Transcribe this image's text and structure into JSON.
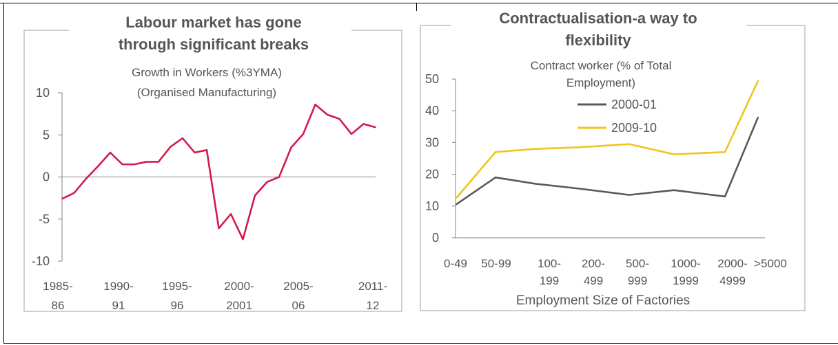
{
  "chart_data": [
    {
      "type": "line",
      "title": [
        "Labour market has gone",
        "through significant breaks"
      ],
      "subtitle": [
        "Growth in Workers (%3YMA)",
        "(Organised Manufacturing)"
      ],
      "x_tick_labels": [
        [
          "1985-",
          "86"
        ],
        [
          "1990-",
          "91"
        ],
        [
          "1995-",
          "96"
        ],
        [
          "2000-",
          "2001"
        ],
        [
          "2005-",
          "06"
        ],
        [
          "2011-",
          "12"
        ]
      ],
      "y_ticks": [
        "10",
        "5",
        "0",
        "-5",
        "-10"
      ],
      "ylim": [
        -10,
        10
      ],
      "grid": false,
      "series": [
        {
          "color": "#d41a4a",
          "x": [
            1985,
            1986,
            1987,
            1988,
            1989,
            1990,
            1991,
            1992,
            1993,
            1994,
            1995,
            1996,
            1997,
            1998,
            1999,
            2000,
            2001,
            2002,
            2003,
            2004,
            2005,
            2006,
            2007,
            2008,
            2009,
            2010,
            2011
          ],
          "values": [
            -2.6,
            -1.9,
            -0.2,
            1.3,
            2.9,
            1.5,
            1.5,
            1.8,
            1.8,
            3.6,
            4.6,
            2.9,
            3.2,
            -6.1,
            -4.4,
            -7.4,
            -2.2,
            -0.6,
            0.0,
            3.5,
            5.1,
            8.6,
            7.4,
            6.9,
            5.1,
            6.3,
            5.9
          ]
        }
      ]
    },
    {
      "type": "line",
      "title": [
        "Contractualisation-a way to",
        "flexibility"
      ],
      "subtitle": [
        "Contract worker (% of Total",
        "Employment)"
      ],
      "xlabel": "Employment Size of Factories",
      "categories": [
        [
          "0-49"
        ],
        [
          "50-99"
        ],
        [
          "100-",
          "199"
        ],
        [
          "200-",
          "499"
        ],
        [
          "500-",
          "999"
        ],
        [
          "1000-",
          "1999"
        ],
        [
          "2000-",
          "4999"
        ],
        [
          ">5000"
        ]
      ],
      "y_ticks": [
        "50",
        "40",
        "30",
        "20",
        "10",
        "0"
      ],
      "ylim": [
        0,
        50
      ],
      "grid": false,
      "legend_placement": "top-center",
      "series": [
        {
          "name": "2000-01",
          "color": "#595959",
          "values": [
            10.5,
            19.0,
            17.0,
            15.5,
            13.5,
            15.0,
            13.0,
            38.0
          ]
        },
        {
          "name": "2009-10",
          "color": "#f0c419",
          "values": [
            12.5,
            27.0,
            28.0,
            28.5,
            29.5,
            26.3,
            27.0,
            49.5
          ]
        }
      ]
    }
  ]
}
